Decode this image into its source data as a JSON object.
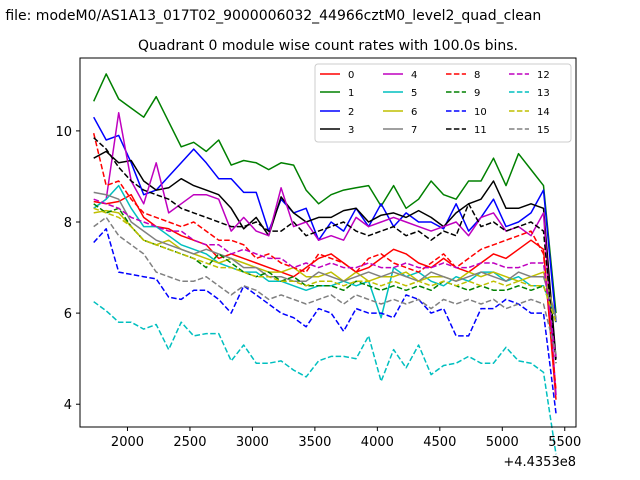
{
  "chart_data": {
    "type": "line",
    "header": "n file: modeM0/AS1A13_017T02_9000006032_44966cztM0_level2_quad_clean",
    "title": "Quadrant 0 module wise count rates with 100.0s bins.",
    "xlabel": "",
    "ylabel": "",
    "x_offset_label": "+4.4353e8",
    "xlim": [
      1620,
      5590
    ],
    "ylim": [
      3.5,
      11.6
    ],
    "x_ticks": [
      2000,
      2500,
      3000,
      3500,
      4000,
      4500,
      5000,
      5500
    ],
    "y_ticks": [
      4,
      6,
      8,
      10
    ],
    "grid": false,
    "legend_position": "top-right",
    "x": [
      1730,
      1830,
      1930,
      2030,
      2130,
      2230,
      2330,
      2430,
      2530,
      2630,
      2730,
      2830,
      2930,
      3030,
      3130,
      3230,
      3330,
      3430,
      3530,
      3630,
      3730,
      3830,
      3930,
      4030,
      4130,
      4230,
      4330,
      4430,
      4530,
      4630,
      4730,
      4830,
      4930,
      5030,
      5130,
      5230,
      5330,
      5430
    ],
    "series": [
      {
        "name": "0",
        "color": "#ff0000",
        "dash": "solid",
        "values": [
          8.45,
          8.4,
          8.45,
          8.6,
          8.1,
          7.9,
          7.85,
          7.7,
          7.6,
          7.5,
          7.2,
          7.3,
          7.2,
          7.1,
          7.0,
          6.9,
          6.8,
          7.0,
          7.2,
          7.3,
          7.1,
          6.9,
          7.0,
          7.2,
          7.4,
          7.3,
          7.1,
          7.0,
          7.2,
          7.0,
          6.9,
          7.1,
          7.3,
          7.2,
          7.4,
          7.6,
          7.4,
          4.1
        ]
      },
      {
        "name": "1",
        "color": "#008000",
        "dash": "solid",
        "values": [
          10.65,
          11.25,
          10.7,
          10.5,
          10.3,
          10.75,
          10.2,
          9.65,
          9.75,
          9.55,
          9.8,
          9.25,
          9.35,
          9.3,
          9.15,
          9.3,
          9.25,
          8.7,
          8.4,
          8.6,
          8.7,
          8.75,
          8.8,
          8.35,
          8.8,
          8.3,
          8.5,
          8.9,
          8.6,
          8.5,
          8.9,
          8.9,
          9.4,
          8.8,
          9.5,
          9.15,
          8.8,
          6.0
        ]
      },
      {
        "name": "2",
        "color": "#0000ff",
        "dash": "solid",
        "values": [
          10.3,
          9.8,
          9.9,
          9.3,
          8.6,
          8.7,
          9.0,
          9.3,
          9.6,
          9.3,
          8.95,
          8.95,
          8.65,
          8.65,
          7.8,
          8.5,
          8.2,
          8.3,
          7.6,
          8.0,
          7.8,
          8.3,
          7.9,
          8.4,
          7.9,
          8.2,
          8.0,
          8.0,
          7.85,
          8.4,
          7.8,
          8.1,
          8.5,
          7.9,
          8.0,
          8.2,
          8.7,
          5.8
        ]
      },
      {
        "name": "3",
        "color": "#000000",
        "dash": "solid",
        "values": [
          9.4,
          9.55,
          9.3,
          9.35,
          8.9,
          8.7,
          8.75,
          8.95,
          8.8,
          8.7,
          8.6,
          8.3,
          7.85,
          8.1,
          7.7,
          8.55,
          8.2,
          8.0,
          8.1,
          8.1,
          8.25,
          8.3,
          8.0,
          8.15,
          8.2,
          8.1,
          8.25,
          8.1,
          7.9,
          8.2,
          8.4,
          8.5,
          8.9,
          8.3,
          8.3,
          8.4,
          8.3,
          5.0
        ]
      },
      {
        "name": "4",
        "color": "#bf00bf",
        "dash": "solid",
        "values": [
          8.3,
          8.5,
          10.4,
          8.9,
          8.4,
          9.3,
          8.2,
          8.4,
          8.6,
          8.6,
          8.5,
          7.8,
          8.1,
          7.8,
          7.7,
          8.75,
          7.9,
          8.0,
          7.6,
          7.7,
          7.6,
          8.1,
          7.9,
          8.0,
          8.1,
          8.0,
          7.9,
          7.8,
          7.9,
          8.0,
          7.7,
          8.1,
          8.2,
          7.8,
          7.9,
          7.7,
          8.2,
          4.2
        ]
      },
      {
        "name": "5",
        "color": "#00bfbf",
        "dash": "solid",
        "values": [
          8.3,
          8.5,
          8.8,
          8.3,
          7.9,
          7.9,
          7.7,
          7.5,
          7.4,
          7.3,
          7.1,
          7.0,
          6.9,
          6.9,
          6.7,
          6.7,
          6.6,
          6.5,
          6.6,
          6.6,
          6.7,
          6.6,
          6.7,
          5.9,
          7.0,
          6.8,
          6.9,
          6.7,
          6.6,
          6.8,
          6.7,
          6.9,
          6.9,
          6.7,
          6.8,
          6.6,
          6.6,
          5.9
        ]
      },
      {
        "name": "6",
        "color": "#bfbf00",
        "dash": "solid",
        "values": [
          8.2,
          8.25,
          8.2,
          7.9,
          7.6,
          7.5,
          7.6,
          7.4,
          7.3,
          7.2,
          7.1,
          7.2,
          7.1,
          7.0,
          6.9,
          6.9,
          7.0,
          6.8,
          6.8,
          6.9,
          6.7,
          6.9,
          6.7,
          6.8,
          6.8,
          6.9,
          6.7,
          6.8,
          6.8,
          6.7,
          6.9,
          6.8,
          6.9,
          6.8,
          6.7,
          6.8,
          6.9,
          5.9
        ]
      },
      {
        "name": "7",
        "color": "#808080",
        "dash": "solid",
        "values": [
          8.65,
          8.6,
          8.5,
          8.0,
          7.8,
          7.6,
          7.5,
          7.4,
          7.3,
          7.4,
          7.3,
          7.2,
          7.0,
          7.0,
          6.8,
          6.8,
          6.7,
          6.7,
          6.9,
          6.8,
          6.7,
          6.8,
          6.9,
          6.8,
          6.9,
          6.8,
          6.7,
          6.9,
          6.8,
          6.7,
          6.8,
          6.9,
          6.8,
          6.7,
          6.9,
          6.8,
          6.8,
          5.9
        ]
      },
      {
        "name": "8",
        "color": "#ff0000",
        "dash": "dashed",
        "values": [
          9.95,
          8.8,
          8.9,
          8.5,
          8.2,
          8.1,
          8.0,
          7.9,
          8.0,
          7.8,
          7.6,
          7.6,
          7.5,
          7.2,
          7.3,
          7.1,
          7.0,
          6.9,
          7.3,
          7.2,
          7.1,
          6.9,
          7.2,
          7.3,
          7.1,
          7.0,
          6.9,
          7.1,
          7.3,
          7.0,
          7.2,
          7.4,
          7.5,
          7.6,
          7.7,
          7.8,
          7.3,
          4.3
        ]
      },
      {
        "name": "9",
        "color": "#008000",
        "dash": "dashed",
        "values": [
          8.4,
          8.2,
          8.3,
          7.9,
          7.6,
          7.5,
          7.4,
          7.3,
          7.2,
          7.0,
          7.3,
          7.1,
          6.9,
          6.8,
          6.9,
          6.7,
          6.8,
          6.6,
          6.6,
          6.6,
          6.5,
          6.7,
          6.6,
          6.5,
          6.6,
          6.5,
          6.6,
          6.5,
          6.7,
          6.6,
          6.5,
          6.6,
          6.5,
          6.5,
          6.6,
          6.5,
          6.6,
          5.8
        ]
      },
      {
        "name": "10",
        "color": "#0000ff",
        "dash": "dashed",
        "values": [
          7.55,
          7.85,
          6.9,
          6.85,
          6.8,
          6.75,
          6.35,
          6.3,
          6.5,
          6.5,
          6.3,
          6.0,
          6.6,
          6.4,
          6.2,
          6.0,
          5.9,
          5.7,
          6.1,
          6.0,
          5.6,
          6.1,
          6.0,
          6.0,
          5.9,
          6.4,
          6.3,
          6.0,
          6.1,
          5.5,
          5.5,
          6.1,
          6.1,
          6.3,
          6.2,
          6.0,
          6.0,
          3.8
        ]
      },
      {
        "name": "11",
        "color": "#000000",
        "dash": "dashed",
        "values": [
          9.85,
          9.6,
          9.2,
          8.9,
          8.7,
          8.6,
          8.5,
          8.3,
          8.2,
          8.1,
          8.0,
          7.9,
          7.9,
          8.0,
          7.8,
          7.8,
          8.0,
          7.7,
          7.8,
          7.9,
          8.0,
          7.8,
          7.7,
          7.8,
          7.9,
          7.7,
          7.8,
          7.6,
          7.8,
          7.7,
          8.4,
          7.9,
          8.0,
          7.8,
          7.9,
          8.0,
          7.8,
          4.9
        ]
      },
      {
        "name": "12",
        "color": "#bf00bf",
        "dash": "dashed",
        "values": [
          8.5,
          8.4,
          8.3,
          8.1,
          8.0,
          7.9,
          7.8,
          7.8,
          7.6,
          7.5,
          7.5,
          7.3,
          7.4,
          7.3,
          7.2,
          7.2,
          7.0,
          7.1,
          7.0,
          7.1,
          7.0,
          7.0,
          7.1,
          7.0,
          7.0,
          7.1,
          7.0,
          7.0,
          7.1,
          7.0,
          7.0,
          7.1,
          7.1,
          7.0,
          7.0,
          7.1,
          7.1,
          5.0
        ]
      },
      {
        "name": "13",
        "color": "#00bfbf",
        "dash": "dashed",
        "values": [
          6.25,
          6.05,
          5.8,
          5.8,
          5.65,
          5.75,
          5.2,
          5.8,
          5.5,
          5.55,
          5.55,
          4.95,
          5.3,
          4.9,
          4.9,
          4.95,
          4.75,
          4.6,
          4.95,
          5.05,
          5.05,
          5.0,
          5.5,
          4.5,
          5.2,
          4.8,
          5.3,
          4.65,
          4.85,
          4.9,
          5.05,
          4.9,
          4.9,
          5.25,
          4.95,
          4.9,
          4.7,
          2.9
        ]
      },
      {
        "name": "14",
        "color": "#bfbf00",
        "dash": "dashed",
        "values": [
          8.3,
          8.2,
          8.1,
          7.9,
          7.6,
          7.5,
          7.4,
          7.3,
          7.2,
          7.1,
          7.0,
          7.0,
          6.9,
          6.8,
          6.8,
          6.7,
          6.7,
          6.6,
          6.7,
          6.7,
          6.6,
          6.7,
          6.7,
          6.6,
          6.7,
          6.6,
          6.7,
          6.6,
          6.7,
          6.6,
          6.7,
          6.6,
          6.7,
          6.6,
          6.7,
          6.6,
          6.6,
          5.8
        ]
      },
      {
        "name": "15",
        "color": "#808080",
        "dash": "dashed",
        "values": [
          7.9,
          8.1,
          7.7,
          7.5,
          7.3,
          6.9,
          6.8,
          6.7,
          6.7,
          6.8,
          6.6,
          6.4,
          6.6,
          6.5,
          6.3,
          6.4,
          6.3,
          6.2,
          6.3,
          6.4,
          6.2,
          6.4,
          6.3,
          6.2,
          6.3,
          6.2,
          6.3,
          6.1,
          6.3,
          6.2,
          6.3,
          6.2,
          6.3,
          6.1,
          6.2,
          6.3,
          6.2,
          5.1
        ]
      }
    ]
  }
}
